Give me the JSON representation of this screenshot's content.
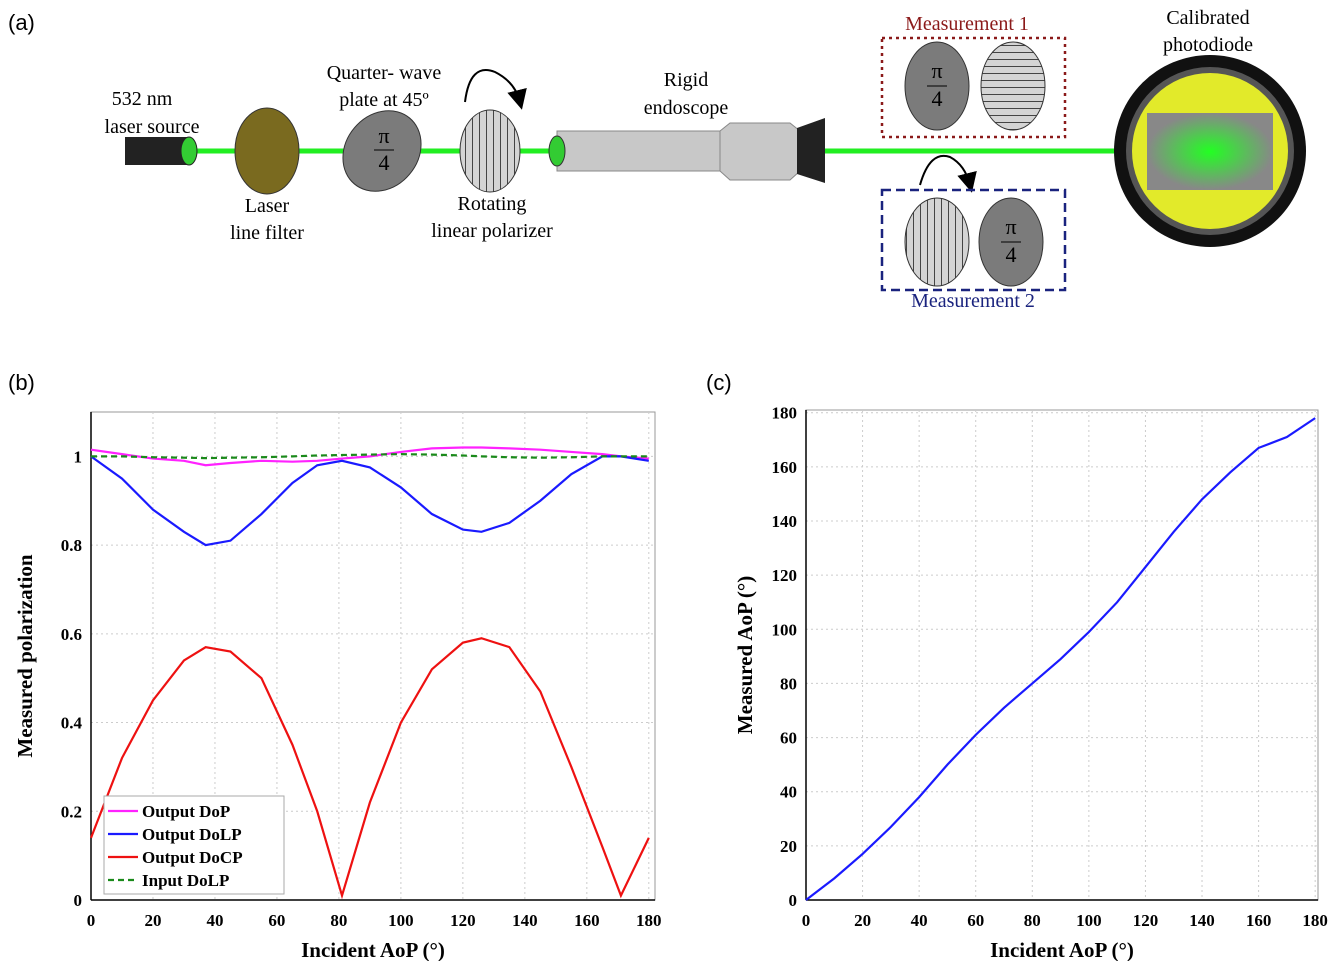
{
  "panel_labels": [
    "(a)",
    "(b)",
    "(c)"
  ],
  "diagram": {
    "laser_source": [
      "532 nm",
      "laser source"
    ],
    "filter": [
      "Laser",
      "line filter"
    ],
    "waveplate": [
      "Quarter- wave",
      "plate at 45º"
    ],
    "polarizer": [
      "Rotating",
      "linear polarizer"
    ],
    "endoscope": [
      "Rigid",
      "endoscope"
    ],
    "measurement_1": "Measurement 1",
    "measurement_2": "Measurement 2",
    "photodiode": [
      "Calibrated",
      "photodiode"
    ],
    "waveplate_symbol": [
      "π",
      "4"
    ]
  },
  "chart_data": [
    {
      "type": "line",
      "xlabel": "Incident AoP (°)",
      "ylabel": "Measured polarization",
      "x": [
        0,
        10,
        20,
        30,
        37,
        45,
        55,
        65,
        73,
        81,
        90,
        100,
        110,
        120,
        126,
        135,
        145,
        155,
        165,
        171,
        180
      ],
      "series": [
        {
          "name": "Output DoP",
          "color": "#ff22ff",
          "style": "solid",
          "values": [
            1.015,
            1.005,
            0.995,
            0.99,
            0.98,
            0.985,
            0.99,
            0.988,
            0.99,
            0.995,
            1.0,
            1.01,
            1.018,
            1.02,
            1.02,
            1.018,
            1.015,
            1.01,
            1.005,
            1.0,
            0.995
          ]
        },
        {
          "name": "Output DoLP",
          "color": "#1a1aff",
          "style": "solid",
          "values": [
            1.0,
            0.95,
            0.88,
            0.83,
            0.8,
            0.81,
            0.87,
            0.94,
            0.98,
            0.99,
            0.975,
            0.93,
            0.87,
            0.835,
            0.83,
            0.85,
            0.9,
            0.96,
            1.0,
            1.0,
            0.99
          ]
        },
        {
          "name": "Output DoCP",
          "color": "#ee1111",
          "style": "solid",
          "values": [
            0.14,
            0.32,
            0.45,
            0.54,
            0.57,
            0.56,
            0.5,
            0.35,
            0.2,
            0.01,
            0.22,
            0.4,
            0.52,
            0.58,
            0.59,
            0.57,
            0.47,
            0.3,
            0.12,
            0.01,
            0.14
          ]
        },
        {
          "name": "Input DoLP",
          "color": "#1a8a1a",
          "style": "dashed",
          "values": [
            1.0,
            1.0,
            0.998,
            0.997,
            0.996,
            0.997,
            0.998,
            1.0,
            1.002,
            1.003,
            1.004,
            1.005,
            1.004,
            1.002,
            1.0,
            0.998,
            0.997,
            0.998,
            1.0,
            1.0,
            1.0
          ]
        }
      ],
      "xlim": [
        0,
        182
      ],
      "ylim": [
        0,
        1.1
      ],
      "xticks": [
        0,
        20,
        40,
        60,
        80,
        100,
        120,
        140,
        160,
        180
      ],
      "yticks": [
        0,
        0.2,
        0.4,
        0.6,
        0.8,
        1
      ],
      "grid": true,
      "legend": "lower left"
    },
    {
      "type": "line",
      "xlabel": "Incident AoP (°)",
      "ylabel": "Measured AoP (°)",
      "x": [
        0,
        10,
        20,
        30,
        40,
        50,
        60,
        70,
        80,
        90,
        100,
        110,
        120,
        130,
        140,
        150,
        160,
        170,
        180
      ],
      "series": [
        {
          "color": "#1a1aff",
          "style": "solid",
          "values": [
            0,
            8,
            17,
            27,
            38,
            50,
            61,
            71,
            80,
            89,
            99,
            110,
            123,
            136,
            148,
            158,
            167,
            171,
            178
          ]
        }
      ],
      "xlim": [
        0,
        181
      ],
      "ylim": [
        0,
        181
      ],
      "xticks": [
        0,
        20,
        40,
        60,
        80,
        100,
        120,
        140,
        160,
        180
      ],
      "yticks": [
        0,
        20,
        40,
        60,
        80,
        100,
        120,
        140,
        160,
        180
      ],
      "grid": true
    }
  ]
}
